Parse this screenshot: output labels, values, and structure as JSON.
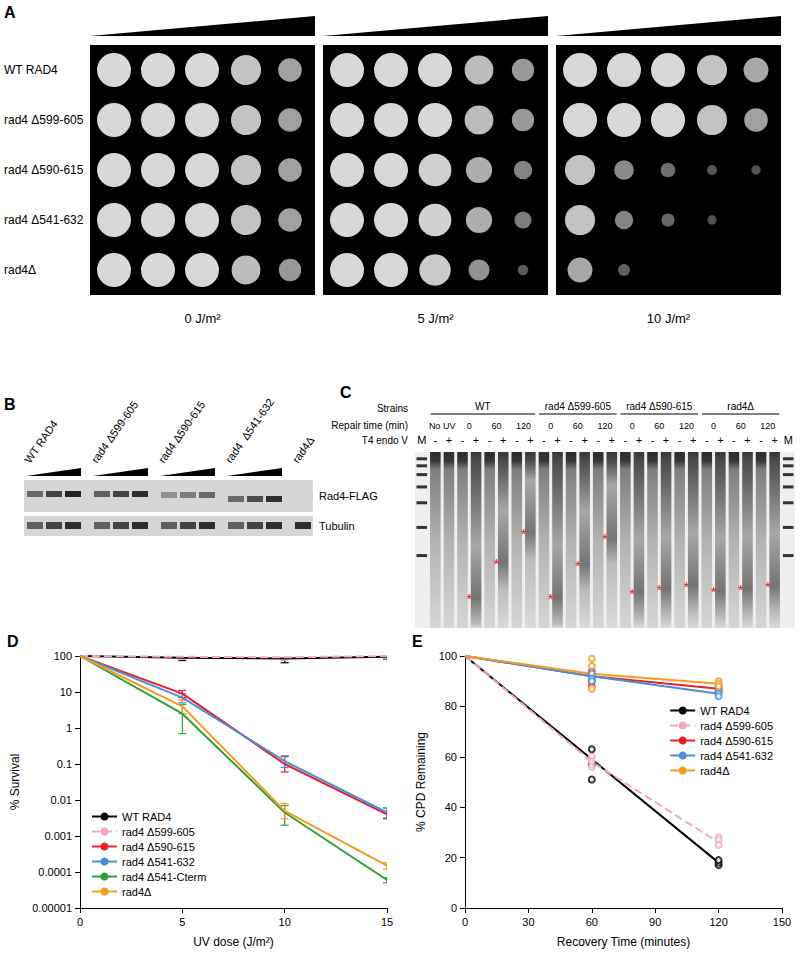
{
  "panel_A": {
    "label": "A",
    "strains": [
      "WT RAD4",
      "rad4 Δ599-605",
      "rad4 Δ590-615",
      "rad4 Δ541-632",
      "rad4Δ"
    ],
    "plates": [
      {
        "dose": "0 J/m²",
        "growth": [
          [
            1,
            1,
            1,
            0.85,
            0.6
          ],
          [
            1,
            1,
            1,
            0.85,
            0.6
          ],
          [
            1,
            1,
            1,
            0.85,
            0.6
          ],
          [
            1,
            1,
            1,
            0.85,
            0.6
          ],
          [
            1,
            1,
            1,
            0.8,
            0.55
          ]
        ]
      },
      {
        "dose": "5 J/m²",
        "growth": [
          [
            1,
            1,
            1,
            0.8,
            0.55
          ],
          [
            1,
            1,
            1,
            0.8,
            0.55
          ],
          [
            1,
            1,
            0.95,
            0.7,
            0.4
          ],
          [
            1,
            1,
            0.95,
            0.7,
            0.35
          ],
          [
            1,
            1,
            0.9,
            0.5,
            0.1
          ]
        ]
      },
      {
        "dose": "10 J/m²",
        "growth": [
          [
            1,
            1,
            1,
            0.85,
            0.65
          ],
          [
            1,
            1,
            1,
            0.85,
            0.6
          ],
          [
            0.85,
            0.45,
            0.25,
            0.08,
            0.05
          ],
          [
            0.85,
            0.4,
            0.2,
            0.05,
            0
          ],
          [
            0.65,
            0.15,
            0,
            0,
            0
          ]
        ]
      }
    ]
  },
  "panel_B": {
    "label": "B",
    "band_labels": [
      "Rad4-FLAG",
      "Tubulin"
    ],
    "groups": [
      {
        "strain": "WT RAD4",
        "rad4_flag": [
          0.55,
          0.75,
          0.9
        ],
        "tubulin": [
          0.6,
          0.75,
          0.85
        ],
        "migration": 0.35
      },
      {
        "strain": "rad4 Δ599-605",
        "rad4_flag": [
          0.6,
          0.75,
          0.85
        ],
        "tubulin": [
          0.6,
          0.75,
          0.85
        ],
        "migration": 0.35
      },
      {
        "strain": "rad4 Δ590-615",
        "rad4_flag": [
          0.35,
          0.45,
          0.55
        ],
        "tubulin": [
          0.6,
          0.75,
          0.85
        ],
        "migration": 0.4
      },
      {
        "strain": "rad4  Δ541-632",
        "rad4_flag": [
          0.55,
          0.7,
          0.85
        ],
        "tubulin": [
          0.6,
          0.75,
          0.85
        ],
        "migration": 0.6
      },
      {
        "strain": "rad4Δ",
        "rad4_flag": [
          0
        ],
        "tubulin": [
          0.85
        ],
        "migration": null
      }
    ]
  },
  "panel_C": {
    "label": "C",
    "row_titles": [
      "Strains",
      "Repair time (min)",
      "T4 endo V"
    ],
    "marker_label": "M",
    "marker_bands": [
      0.03,
      0.07,
      0.12,
      0.19,
      0.28,
      0.42,
      0.58
    ],
    "asterisk": "*",
    "groups": [
      {
        "strain": "WT",
        "times": [
          {
            "time": "No UV",
            "lanes": [
              {
                "enzyme": "-",
                "asterisk_at": null
              },
              {
                "enzyme": "+",
                "asterisk_at": null
              }
            ]
          },
          {
            "time": "0",
            "lanes": [
              {
                "enzyme": "-",
                "asterisk_at": null
              },
              {
                "enzyme": "+",
                "asterisk_at": 0.83
              }
            ]
          },
          {
            "time": "60",
            "lanes": [
              {
                "enzyme": "-",
                "asterisk_at": null
              },
              {
                "enzyme": "+",
                "asterisk_at": 0.63
              }
            ]
          },
          {
            "time": "120",
            "lanes": [
              {
                "enzyme": "-",
                "asterisk_at": null
              },
              {
                "enzyme": "+",
                "asterisk_at": 0.46
              }
            ]
          }
        ]
      },
      {
        "strain": "rad4 Δ599-605",
        "times": [
          {
            "time": "0",
            "lanes": [
              {
                "enzyme": "-",
                "asterisk_at": null
              },
              {
                "enzyme": "+",
                "asterisk_at": 0.83
              }
            ]
          },
          {
            "time": "60",
            "lanes": [
              {
                "enzyme": "-",
                "asterisk_at": null
              },
              {
                "enzyme": "+",
                "asterisk_at": 0.64
              }
            ]
          },
          {
            "time": "120",
            "lanes": [
              {
                "enzyme": "-",
                "asterisk_at": null
              },
              {
                "enzyme": "+",
                "asterisk_at": 0.49
              }
            ]
          }
        ]
      },
      {
        "strain": "rad4 Δ590-615",
        "times": [
          {
            "time": "0",
            "lanes": [
              {
                "enzyme": "-",
                "asterisk_at": null
              },
              {
                "enzyme": "+",
                "asterisk_at": 0.8
              }
            ]
          },
          {
            "time": "60",
            "lanes": [
              {
                "enzyme": "-",
                "asterisk_at": null
              },
              {
                "enzyme": "+",
                "asterisk_at": 0.78
              }
            ]
          },
          {
            "time": "120",
            "lanes": [
              {
                "enzyme": "-",
                "asterisk_at": null
              },
              {
                "enzyme": "+",
                "asterisk_at": 0.76
              }
            ]
          }
        ]
      },
      {
        "strain": "rad4Δ",
        "times": [
          {
            "time": "0",
            "lanes": [
              {
                "enzyme": "-",
                "asterisk_at": null
              },
              {
                "enzyme": "+",
                "asterisk_at": 0.79
              }
            ]
          },
          {
            "time": "60",
            "lanes": [
              {
                "enzyme": "-",
                "asterisk_at": null
              },
              {
                "enzyme": "+",
                "asterisk_at": 0.78
              }
            ]
          },
          {
            "time": "120",
            "lanes": [
              {
                "enzyme": "-",
                "asterisk_at": null
              },
              {
                "enzyme": "+",
                "asterisk_at": 0.76
              }
            ]
          }
        ]
      }
    ]
  },
  "chart_data": [
    {
      "type": "line",
      "title": "D",
      "x_label": "UV dose (J/m²)",
      "y_label": "% Survival",
      "log": "y",
      "grid": false,
      "legend": "lower left",
      "x": [
        0,
        5,
        10,
        15
      ],
      "xlim": [
        0,
        15
      ],
      "xticks": [
        0,
        5,
        10,
        15
      ],
      "ylim": [
        1e-05,
        100
      ],
      "yticks": [
        1e-05,
        0.0001,
        0.001,
        0.01,
        0.1,
        1,
        10,
        100
      ],
      "series": [
        {
          "name": "WT RAD4",
          "color": "#000000",
          "line_style": "solid",
          "values": [
            100,
            90,
            85,
            95
          ],
          "error_low": [
            null,
            75,
            65,
            82
          ],
          "error_high": [
            null,
            105,
            105,
            110
          ]
        },
        {
          "name": "rad4 Δ599-605",
          "color": "#f4a6c8",
          "line_style": "dashed",
          "values": [
            100,
            95,
            92,
            100
          ],
          "error_low": [
            null,
            80,
            75,
            85
          ],
          "error_high": [
            null,
            110,
            110,
            112
          ]
        },
        {
          "name": "rad4 Δ590-615",
          "color": "#e8202a",
          "line_style": "solid",
          "values": [
            100,
            9,
            0.1,
            0.004
          ],
          "error_low": [
            null,
            7,
            0.06,
            0.003
          ],
          "error_high": [
            null,
            11,
            0.16,
            0.006
          ]
        },
        {
          "name": "rad4 Δ541-632",
          "color": "#4a8fd6",
          "line_style": "solid",
          "values": [
            100,
            7,
            0.12,
            0.0045
          ],
          "error_low": [
            null,
            5,
            0.08,
            0.0032
          ],
          "error_high": [
            null,
            9,
            0.17,
            0.006
          ]
        },
        {
          "name": "rad4 Δ541-Cterm",
          "color": "#2e9e3a",
          "line_style": "solid",
          "values": [
            100,
            2.5,
            0.0045,
            6e-05
          ],
          "error_low": [
            null,
            0.7,
            0.002,
            5e-05
          ],
          "error_high": [
            null,
            4.5,
            0.007,
            7e-05
          ]
        },
        {
          "name": "rad4Δ",
          "color": "#f39c1f",
          "line_style": "solid",
          "values": [
            100,
            4,
            0.005,
            0.00015
          ],
          "error_low": [
            null,
            2.5,
            0.003,
            0.00012
          ],
          "error_high": [
            null,
            6,
            0.008,
            0.00018
          ]
        }
      ]
    },
    {
      "type": "line",
      "title": "E",
      "x_label": "Recovery Time (minutes)",
      "y_label": "% CPD Remaining",
      "grid": false,
      "legend": "right",
      "x": [
        0,
        60,
        120
      ],
      "xlim": [
        0,
        150
      ],
      "xticks": [
        0,
        30,
        60,
        90,
        120,
        150
      ],
      "ylim": [
        0,
        100
      ],
      "yticks": [
        0,
        20,
        40,
        60,
        80,
        100
      ],
      "series": [
        {
          "name": "WT RAD4",
          "color": "#000000",
          "line_style": "solid",
          "marker": "circle",
          "values": [
            100,
            59,
            18
          ],
          "replicate_x": [
            60,
            60,
            60,
            120,
            120,
            120
          ],
          "replicate_values": [
            63,
            57,
            51,
            17,
            18,
            19
          ]
        },
        {
          "name": "rad4 Δ599-605",
          "color": "#f4a6c8",
          "line_style": "dashed",
          "marker": "circle",
          "values": [
            100,
            58,
            26
          ],
          "replicate_x": [
            60,
            60,
            60,
            120,
            120,
            120
          ],
          "replicate_values": [
            60,
            58,
            56,
            28,
            27,
            25
          ]
        },
        {
          "name": "rad4 Δ590-615",
          "color": "#e8202a",
          "line_style": "solid",
          "marker": "circle",
          "values": [
            100,
            92,
            87
          ],
          "replicate_x": [
            60,
            60,
            60,
            120,
            120,
            120
          ],
          "replicate_values": [
            94,
            90,
            88,
            88,
            87,
            86
          ]
        },
        {
          "name": "rad4 Δ541-632",
          "color": "#4a8fd6",
          "line_style": "solid",
          "marker": "circle",
          "values": [
            100,
            92,
            85
          ],
          "replicate_x": [
            60,
            60,
            60,
            120,
            120,
            120
          ],
          "replicate_values": [
            93,
            91,
            90,
            86,
            85,
            84
          ]
        },
        {
          "name": "rad4Δ",
          "color": "#f39c1f",
          "line_style": "solid",
          "marker": "circle",
          "values": [
            100,
            93,
            89
          ],
          "replicate_x": [
            60,
            60,
            60,
            120,
            120,
            120
          ],
          "replicate_values": [
            99,
            96,
            87,
            90,
            89,
            88
          ]
        }
      ]
    }
  ]
}
